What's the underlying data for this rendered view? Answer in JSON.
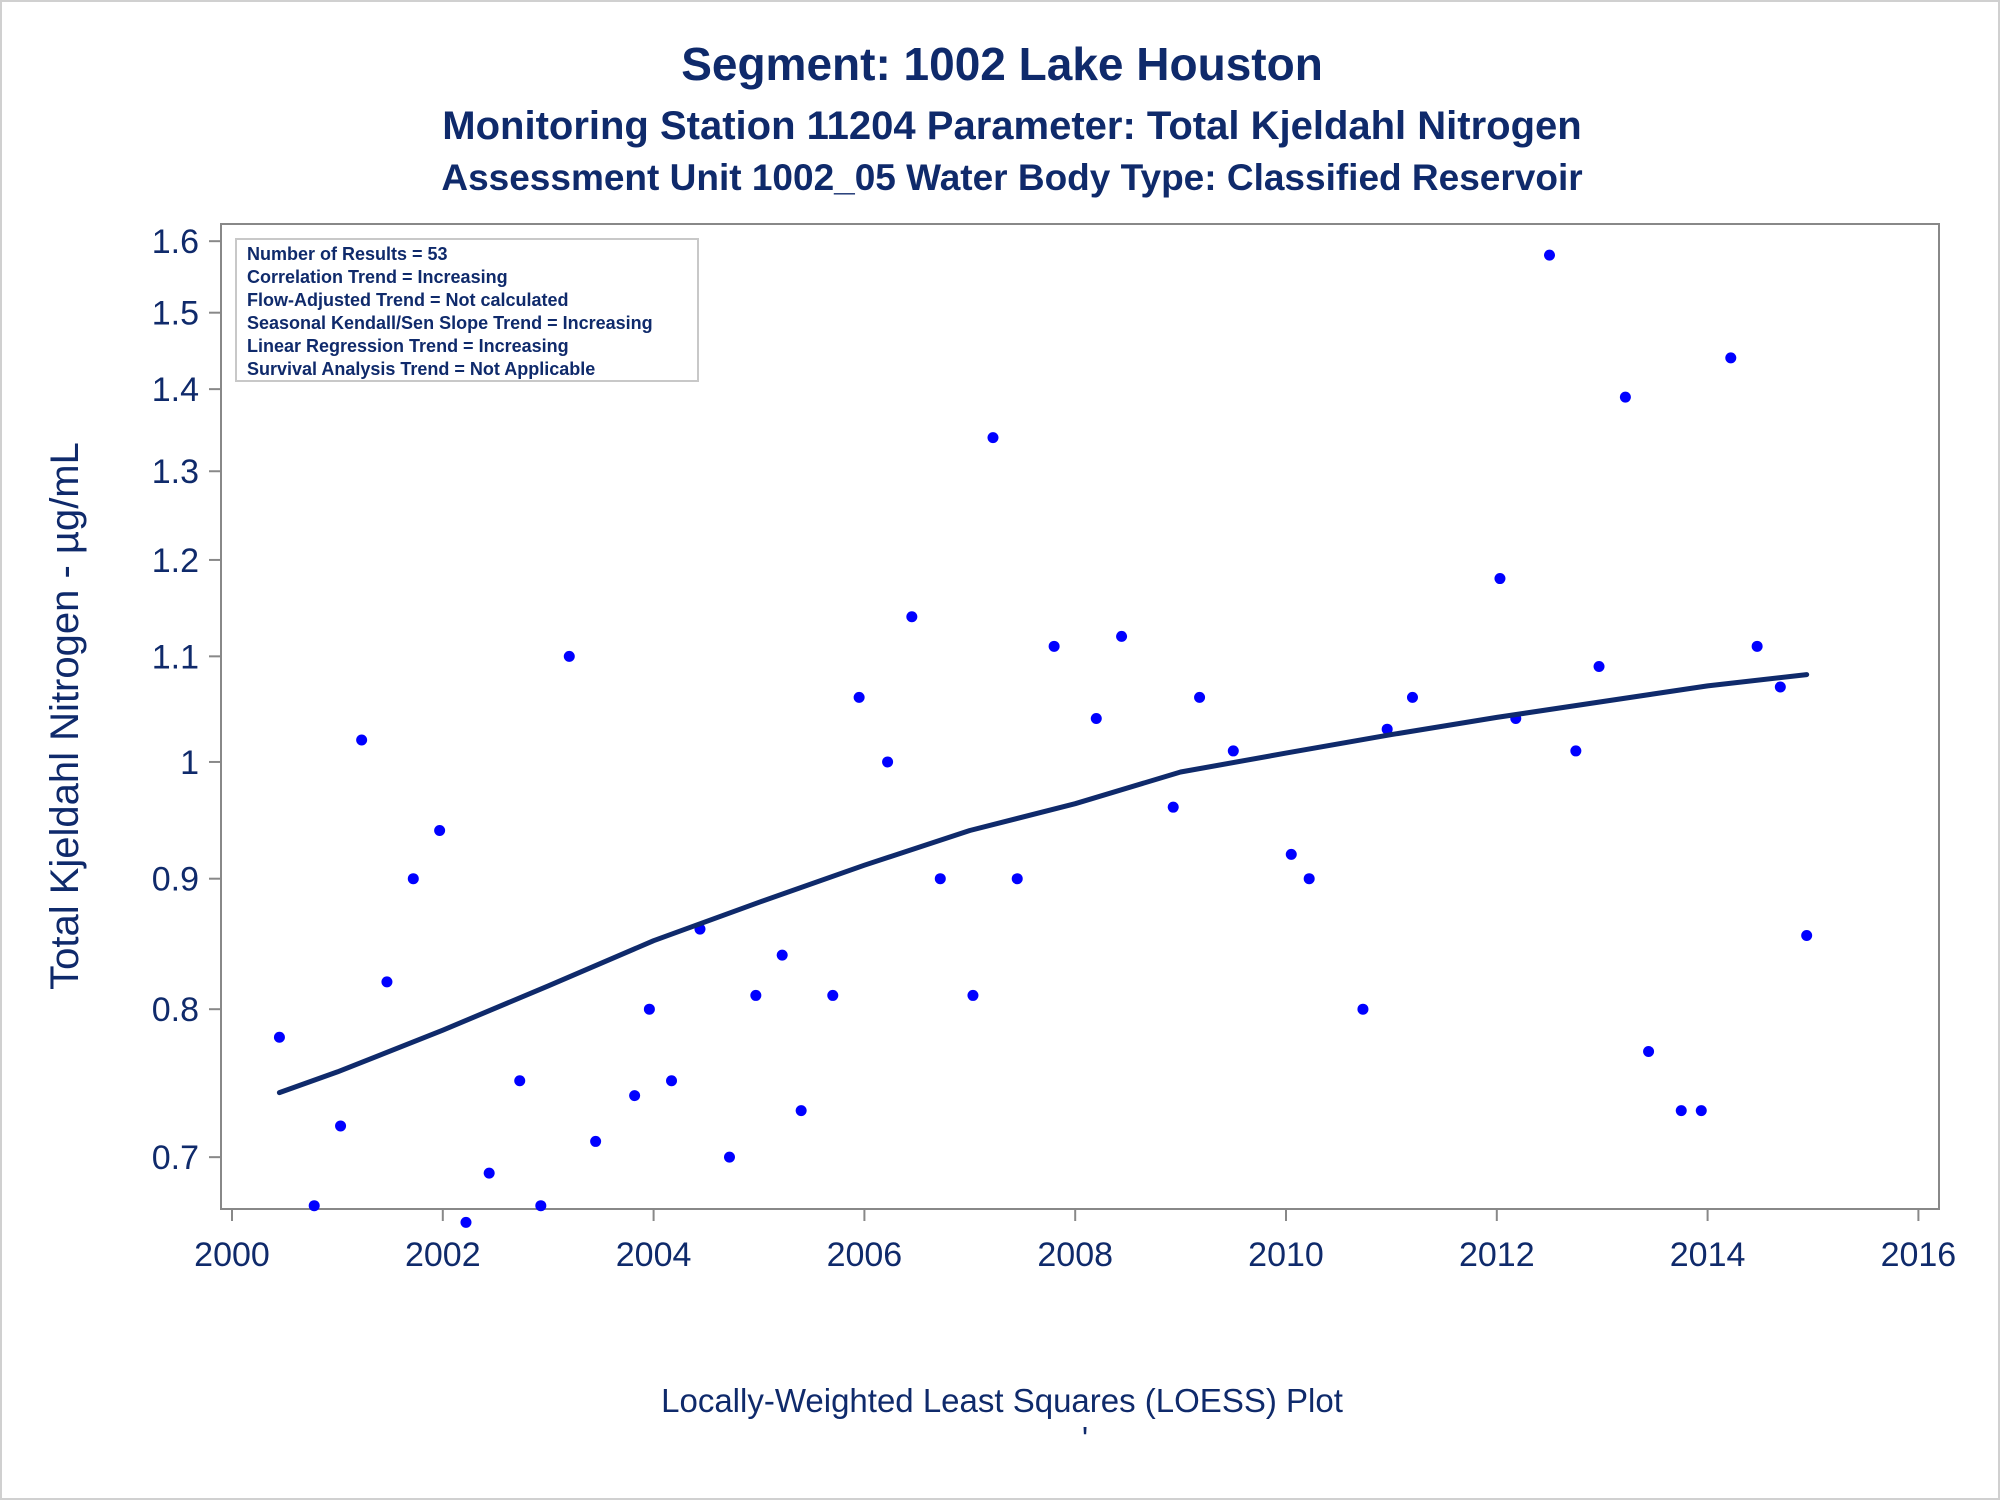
{
  "chart_data": {
    "type": "scatter",
    "titles": [
      "Segment: 1002  Lake Houston",
      "Monitoring Station 11204 Parameter: Total Kjeldahl Nitrogen",
      "Assessment Unit 1002_05   Water Body Type: Classified Reservoir"
    ],
    "ylabel": "Total Kjeldahl Nitrogen -  µg/mL",
    "xlabel": "Locally-Weighted Least Squares (LOESS) Plot",
    "footer_mark": "'",
    "y_scale": "log",
    "xlim": [
      2000,
      2016
    ],
    "ylim": [
      0.668,
      1.625
    ],
    "x_ticks": [
      2000,
      2002,
      2004,
      2006,
      2008,
      2010,
      2012,
      2014,
      2016
    ],
    "y_ticks": [
      {
        "value": 0.7,
        "label": "0.7"
      },
      {
        "value": 0.8,
        "label": "0.8"
      },
      {
        "value": 0.9,
        "label": "0.9"
      },
      {
        "value": 1.0,
        "label": "1"
      },
      {
        "value": 1.1,
        "label": "1.1"
      },
      {
        "value": 1.2,
        "label": "1.2"
      },
      {
        "value": 1.3,
        "label": "1.3"
      },
      {
        "value": 1.4,
        "label": "1.4"
      },
      {
        "value": 1.5,
        "label": "1.5"
      },
      {
        "value": 1.6,
        "label": "1.6"
      }
    ],
    "stats_box": [
      "Number of Results = 53",
      "Correlation Trend = Increasing",
      "Flow-Adjusted Trend = Not calculated",
      "Seasonal Kendall/Sen Slope Trend = Increasing",
      "Linear Regression Trend = Increasing",
      "Survival Analysis Trend = Not Applicable"
    ],
    "colors": {
      "points": "#0000ff",
      "loess": "#0f2a6b",
      "text": "#0f2a6b",
      "axis": "#888888"
    },
    "points": [
      {
        "x": 2000.45,
        "y": 0.78
      },
      {
        "x": 2000.78,
        "y": 0.67
      },
      {
        "x": 2001.03,
        "y": 0.72
      },
      {
        "x": 2001.23,
        "y": 1.02
      },
      {
        "x": 2001.47,
        "y": 0.82
      },
      {
        "x": 2001.72,
        "y": 0.9
      },
      {
        "x": 2001.97,
        "y": 0.94
      },
      {
        "x": 2002.22,
        "y": 0.66
      },
      {
        "x": 2002.44,
        "y": 0.69
      },
      {
        "x": 2002.73,
        "y": 0.75
      },
      {
        "x": 2002.93,
        "y": 0.67
      },
      {
        "x": 2003.2,
        "y": 1.1
      },
      {
        "x": 2003.45,
        "y": 0.71
      },
      {
        "x": 2003.82,
        "y": 0.74
      },
      {
        "x": 2003.96,
        "y": 0.8
      },
      {
        "x": 2004.17,
        "y": 0.75
      },
      {
        "x": 2004.44,
        "y": 0.86
      },
      {
        "x": 2004.72,
        "y": 0.7
      },
      {
        "x": 2004.97,
        "y": 0.81
      },
      {
        "x": 2005.22,
        "y": 0.84
      },
      {
        "x": 2005.4,
        "y": 0.73
      },
      {
        "x": 2005.7,
        "y": 0.81
      },
      {
        "x": 2005.95,
        "y": 1.06
      },
      {
        "x": 2006.22,
        "y": 1.0
      },
      {
        "x": 2006.45,
        "y": 1.14
      },
      {
        "x": 2006.72,
        "y": 0.9
      },
      {
        "x": 2007.03,
        "y": 0.81
      },
      {
        "x": 2007.22,
        "y": 1.34
      },
      {
        "x": 2007.45,
        "y": 0.9
      },
      {
        "x": 2007.8,
        "y": 1.11
      },
      {
        "x": 2008.2,
        "y": 1.04
      },
      {
        "x": 2008.44,
        "y": 1.12
      },
      {
        "x": 2008.93,
        "y": 0.96
      },
      {
        "x": 2009.18,
        "y": 1.06
      },
      {
        "x": 2009.5,
        "y": 1.01
      },
      {
        "x": 2010.05,
        "y": 0.92
      },
      {
        "x": 2010.22,
        "y": 0.9
      },
      {
        "x": 2010.73,
        "y": 0.8
      },
      {
        "x": 2010.96,
        "y": 1.03
      },
      {
        "x": 2011.2,
        "y": 1.06
      },
      {
        "x": 2012.03,
        "y": 1.18
      },
      {
        "x": 2012.18,
        "y": 1.04
      },
      {
        "x": 2012.5,
        "y": 1.58
      },
      {
        "x": 2012.75,
        "y": 1.01
      },
      {
        "x": 2012.97,
        "y": 1.09
      },
      {
        "x": 2013.22,
        "y": 1.39
      },
      {
        "x": 2013.44,
        "y": 0.77
      },
      {
        "x": 2013.75,
        "y": 0.73
      },
      {
        "x": 2013.94,
        "y": 0.73
      },
      {
        "x": 2014.22,
        "y": 1.44
      },
      {
        "x": 2014.47,
        "y": 1.11
      },
      {
        "x": 2014.69,
        "y": 1.07
      },
      {
        "x": 2014.94,
        "y": 0.855
      }
    ],
    "loess": {
      "x": [
        2000.45,
        2001,
        2002,
        2003,
        2004,
        2005,
        2006,
        2007,
        2008,
        2009,
        2010,
        2011,
        2012,
        2013,
        2014,
        2014.94
      ],
      "y": [
        0.742,
        0.756,
        0.785,
        0.817,
        0.851,
        0.881,
        0.911,
        0.94,
        0.963,
        0.991,
        1.008,
        1.025,
        1.041,
        1.056,
        1.071,
        1.082
      ]
    }
  }
}
